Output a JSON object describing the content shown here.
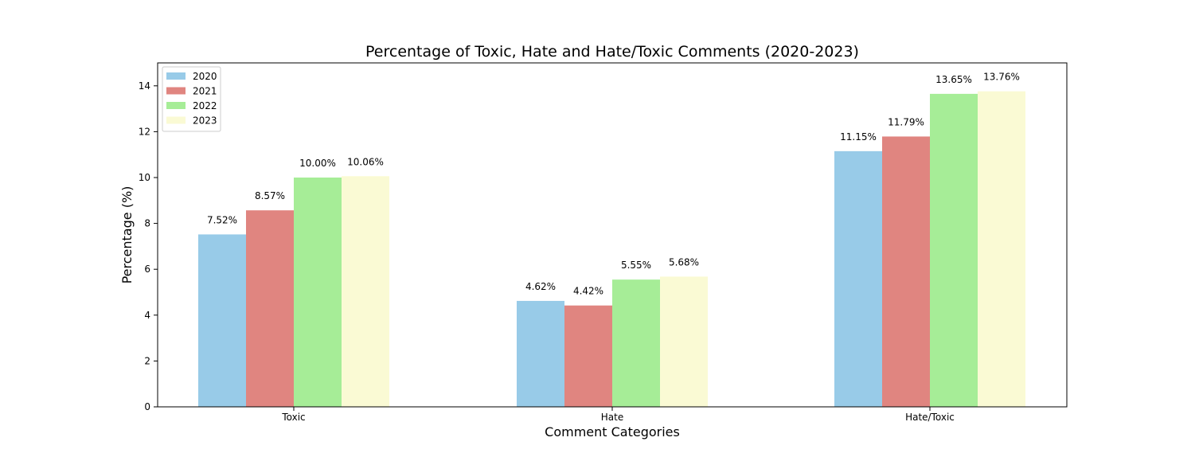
{
  "chart_data": {
    "type": "bar",
    "title": "Percentage of Toxic, Hate and Hate/Toxic Comments (2020-2023)",
    "xlabel": "Comment Categories",
    "ylabel": "Percentage (%)",
    "categories": [
      "Toxic",
      "Hate",
      "Hate/Toxic"
    ],
    "ylim": [
      0,
      15
    ],
    "yticks": [
      0,
      2,
      4,
      6,
      8,
      10,
      12,
      14
    ],
    "grid": false,
    "legend_position": "top-left",
    "series": [
      {
        "name": "2020",
        "color": "#98cbe8",
        "values": [
          7.52,
          4.62,
          11.15
        ],
        "labels": [
          "7.52%",
          "4.62%",
          "11.15%"
        ]
      },
      {
        "name": "2021",
        "color": "#e08580",
        "values": [
          8.57,
          4.42,
          11.79
        ],
        "labels": [
          "8.57%",
          "4.42%",
          "11.79%"
        ]
      },
      {
        "name": "2022",
        "color": "#a6ed97",
        "values": [
          10.0,
          5.55,
          13.65
        ],
        "labels": [
          "10.00%",
          "5.55%",
          "13.65%"
        ]
      },
      {
        "name": "2023",
        "color": "#fafad4",
        "values": [
          10.06,
          5.68,
          13.76
        ],
        "labels": [
          "10.06%",
          "5.68%",
          "13.76%"
        ]
      }
    ]
  }
}
